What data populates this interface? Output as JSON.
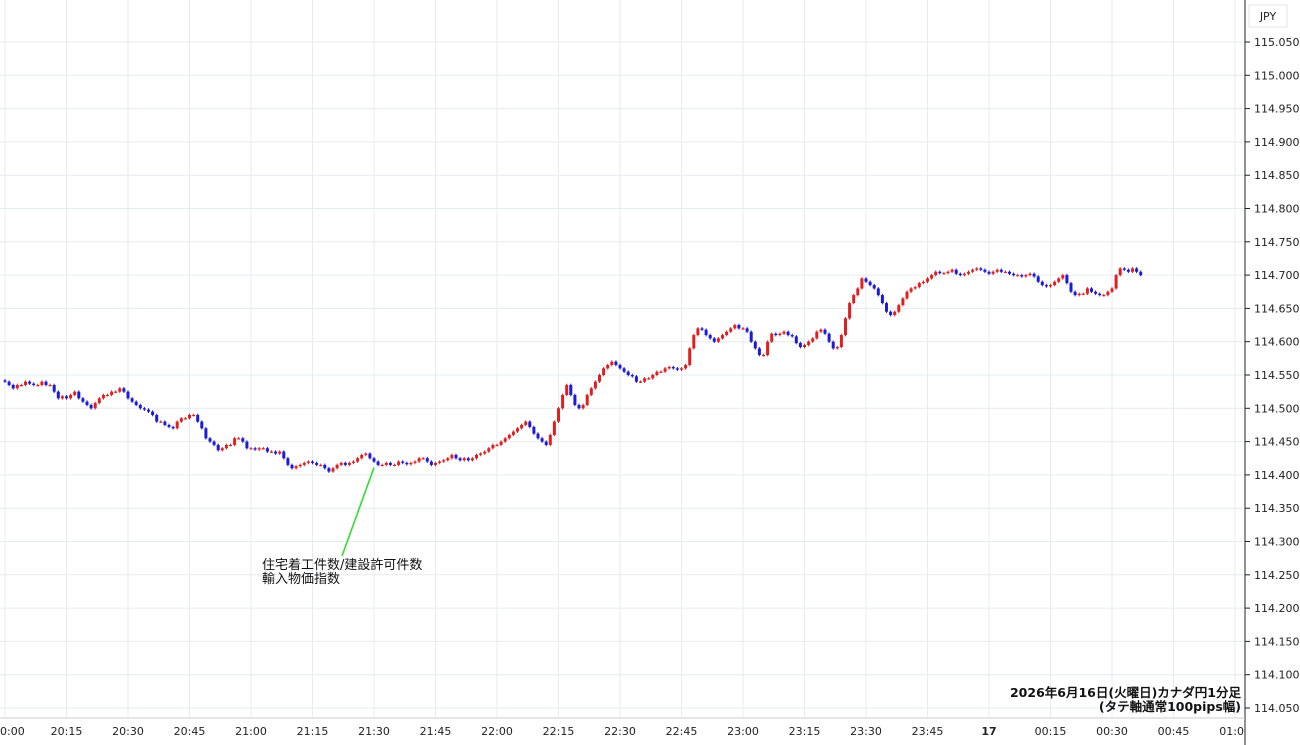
{
  "chart_data": {
    "type": "candlestick",
    "currency_label": "JPY",
    "y_ticks": [
      "115.050",
      "115.000",
      "114.950",
      "114.900",
      "114.850",
      "114.800",
      "114.750",
      "114.700",
      "114.650",
      "114.600",
      "114.550",
      "114.500",
      "114.450",
      "114.400",
      "114.350",
      "114.300",
      "114.250",
      "114.200",
      "114.150",
      "114.100",
      "114.050"
    ],
    "ylim": [
      114.03,
      115.07
    ],
    "x_ticks": [
      {
        "label": "0:00",
        "minute": 0,
        "bold": false
      },
      {
        "label": "20:15",
        "minute": 15,
        "bold": false
      },
      {
        "label": "20:30",
        "minute": 30,
        "bold": false
      },
      {
        "label": "20:45",
        "minute": 45,
        "bold": false
      },
      {
        "label": "21:00",
        "minute": 60,
        "bold": false
      },
      {
        "label": "21:15",
        "minute": 75,
        "bold": false
      },
      {
        "label": "21:30",
        "minute": 90,
        "bold": false
      },
      {
        "label": "21:45",
        "minute": 105,
        "bold": false
      },
      {
        "label": "22:00",
        "minute": 120,
        "bold": false
      },
      {
        "label": "22:15",
        "minute": 135,
        "bold": false
      },
      {
        "label": "22:30",
        "minute": 150,
        "bold": false
      },
      {
        "label": "22:45",
        "minute": 165,
        "bold": false
      },
      {
        "label": "23:00",
        "minute": 180,
        "bold": false
      },
      {
        "label": "23:15",
        "minute": 195,
        "bold": false
      },
      {
        "label": "23:30",
        "minute": 210,
        "bold": false
      },
      {
        "label": "23:45",
        "minute": 225,
        "bold": false
      },
      {
        "label": "17",
        "minute": 240,
        "bold": true
      },
      {
        "label": "00:15",
        "minute": 255,
        "bold": false
      },
      {
        "label": "00:30",
        "minute": 270,
        "bold": false
      },
      {
        "label": "00:45",
        "minute": 285,
        "bold": false
      },
      {
        "label": "01:0",
        "minute": 300,
        "bold": false
      }
    ],
    "closes": [
      114.54,
      114.535,
      114.53,
      114.535,
      114.535,
      114.54,
      114.537,
      114.535,
      114.535,
      114.54,
      114.535,
      114.535,
      114.525,
      114.515,
      114.518,
      114.515,
      114.52,
      114.525,
      114.515,
      114.51,
      114.505,
      114.5,
      114.508,
      114.515,
      114.52,
      114.52,
      114.525,
      114.525,
      114.53,
      114.525,
      114.515,
      114.51,
      114.505,
      114.5,
      114.498,
      114.495,
      114.49,
      114.48,
      114.48,
      114.475,
      114.472,
      114.47,
      114.48,
      114.485,
      114.485,
      114.49,
      114.49,
      114.48,
      114.47,
      114.455,
      114.45,
      114.445,
      114.437,
      114.44,
      114.445,
      114.445,
      114.455,
      114.455,
      114.45,
      114.44,
      114.44,
      114.438,
      114.44,
      114.44,
      114.435,
      114.435,
      114.432,
      114.435,
      114.425,
      114.415,
      114.41,
      114.413,
      114.415,
      114.418,
      114.42,
      114.418,
      114.415,
      114.415,
      114.41,
      114.405,
      114.41,
      114.415,
      114.418,
      114.415,
      114.418,
      114.42,
      114.425,
      114.43,
      114.432,
      114.425,
      114.42,
      114.415,
      114.415,
      114.418,
      114.415,
      114.415,
      114.42,
      114.418,
      114.416,
      114.418,
      114.42,
      114.425,
      114.425,
      114.42,
      114.415,
      114.418,
      114.42,
      114.422,
      114.425,
      114.43,
      114.425,
      114.422,
      114.425,
      114.422,
      114.425,
      114.43,
      114.432,
      114.435,
      114.44,
      114.445,
      114.445,
      114.45,
      114.455,
      114.46,
      114.465,
      114.47,
      114.475,
      114.48,
      114.472,
      114.462,
      114.455,
      114.45,
      114.445,
      114.46,
      114.48,
      114.5,
      114.52,
      114.535,
      114.52,
      114.505,
      114.5,
      114.505,
      114.52,
      114.53,
      114.54,
      114.55,
      114.56,
      114.565,
      114.57,
      114.565,
      114.56,
      114.555,
      114.55,
      114.548,
      114.54,
      114.54,
      114.545,
      114.545,
      114.55,
      114.555,
      114.555,
      114.56,
      114.562,
      114.56,
      114.558,
      114.56,
      114.565,
      114.59,
      114.61,
      114.62,
      114.618,
      114.61,
      114.605,
      114.6,
      114.605,
      114.61,
      114.615,
      114.62,
      114.625,
      114.62,
      114.62,
      114.615,
      114.6,
      114.59,
      114.58,
      114.58,
      114.6,
      114.612,
      114.61,
      114.612,
      114.615,
      114.61,
      114.608,
      114.598,
      114.592,
      114.595,
      114.6,
      114.605,
      114.615,
      114.618,
      114.612,
      114.6,
      114.59,
      114.592,
      114.61,
      114.635,
      114.658,
      114.67,
      114.68,
      114.695,
      114.69,
      114.685,
      114.68,
      114.67,
      114.658,
      114.645,
      114.64,
      114.645,
      114.655,
      114.665,
      114.675,
      114.68,
      114.682,
      114.688,
      114.69,
      114.695,
      114.7,
      114.705,
      114.703,
      114.703,
      114.705,
      114.708,
      114.702,
      114.7,
      114.702,
      114.705,
      114.708,
      114.71,
      114.708,
      114.705,
      114.702,
      114.705,
      114.708,
      114.705,
      114.705,
      114.702,
      114.7,
      114.7,
      114.698,
      114.7,
      114.702,
      114.698,
      114.69,
      114.685,
      114.683,
      114.685,
      114.69,
      114.695,
      114.7,
      114.688,
      114.675,
      114.67,
      114.672,
      114.672,
      114.68,
      114.675,
      114.672,
      114.67,
      114.67,
      114.675,
      114.68,
      114.7,
      114.71,
      114.708,
      114.705,
      114.71,
      114.705,
      114.7
    ],
    "annotation": {
      "lines": [
        "住宅着工件数/建設許可件数",
        "輸入物価指数"
      ],
      "minute": 90
    },
    "caption": [
      "2026年6月16日(火曜日)カナダ円1分足",
      "(タテ軸通常100pips幅)"
    ],
    "colors": {
      "up": "#e02020",
      "down": "#1a1ad8",
      "annotation_line": "#33dd33",
      "grid": "#e6ecf0",
      "axis": "#222222"
    }
  }
}
